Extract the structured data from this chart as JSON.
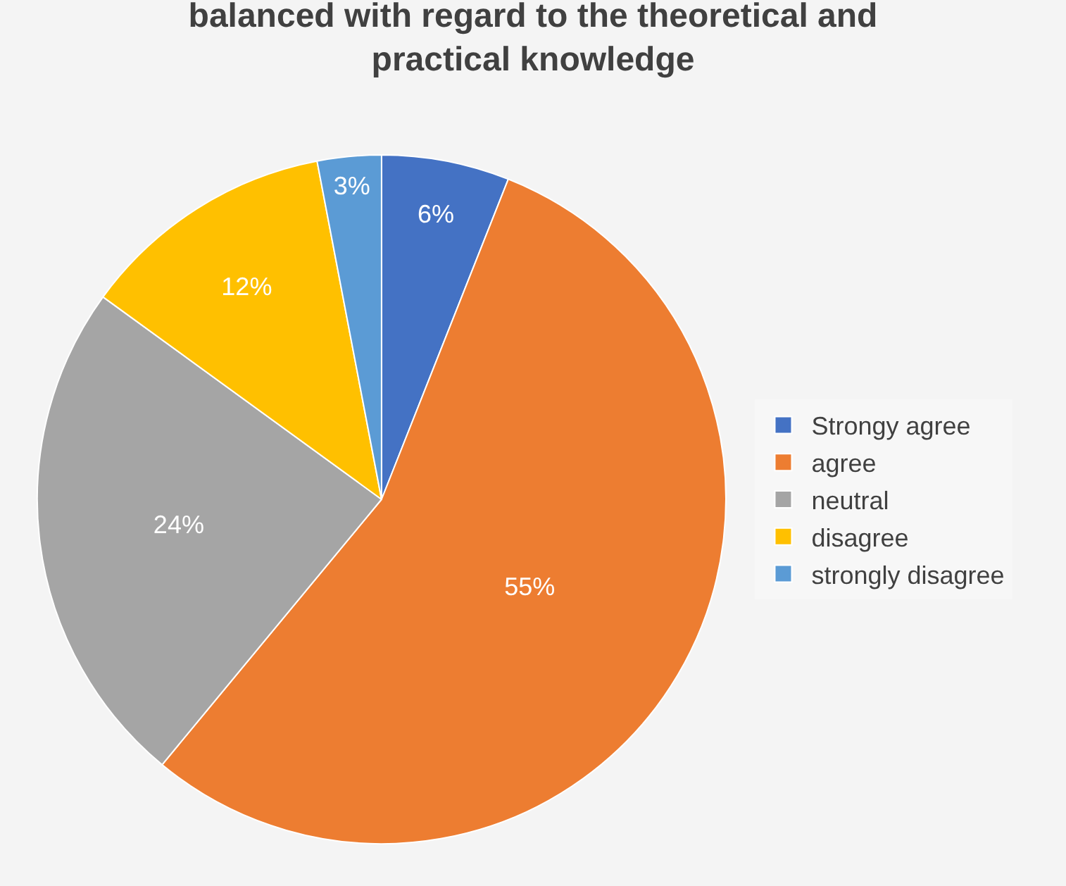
{
  "chart_data": {
    "type": "pie",
    "title": "balanced with regard to the theoretical and practical knowledge",
    "categories": [
      "Strongy agree",
      "agree",
      "neutral",
      "disagree",
      "strongly disagree"
    ],
    "values": [
      6,
      55,
      24,
      12,
      3
    ],
    "value_labels": [
      "6%",
      "55%",
      "24%",
      "12%",
      "3%"
    ],
    "colors": [
      "#4472c4",
      "#ed7d31",
      "#a5a5a5",
      "#ffc000",
      "#5b9bd5"
    ],
    "legend": "right"
  }
}
